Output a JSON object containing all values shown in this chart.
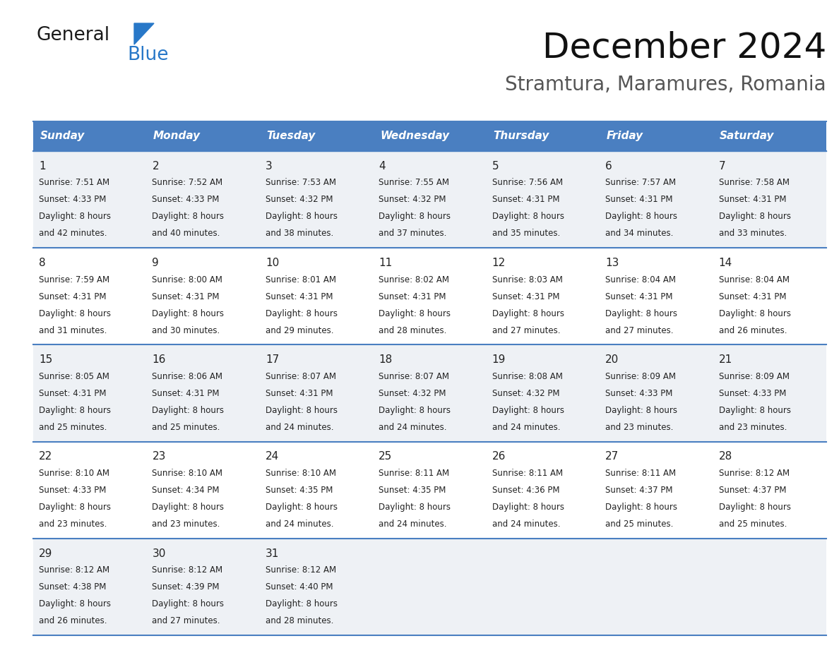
{
  "title": "December 2024",
  "subtitle": "Stramtura, Maramures, Romania",
  "header_bg_color": "#4a7fc1",
  "header_text_color": "#ffffff",
  "cell_bg_even": "#eef1f5",
  "cell_bg_odd": "#ffffff",
  "separator_color": "#4a7fc1",
  "day_headers": [
    "Sunday",
    "Monday",
    "Tuesday",
    "Wednesday",
    "Thursday",
    "Friday",
    "Saturday"
  ],
  "weeks": [
    [
      {
        "day": 1,
        "sunrise": "7:51 AM",
        "sunset": "4:33 PM",
        "daylight": "8 hours and 42 minutes."
      },
      {
        "day": 2,
        "sunrise": "7:52 AM",
        "sunset": "4:33 PM",
        "daylight": "8 hours and 40 minutes."
      },
      {
        "day": 3,
        "sunrise": "7:53 AM",
        "sunset": "4:32 PM",
        "daylight": "8 hours and 38 minutes."
      },
      {
        "day": 4,
        "sunrise": "7:55 AM",
        "sunset": "4:32 PM",
        "daylight": "8 hours and 37 minutes."
      },
      {
        "day": 5,
        "sunrise": "7:56 AM",
        "sunset": "4:31 PM",
        "daylight": "8 hours and 35 minutes."
      },
      {
        "day": 6,
        "sunrise": "7:57 AM",
        "sunset": "4:31 PM",
        "daylight": "8 hours and 34 minutes."
      },
      {
        "day": 7,
        "sunrise": "7:58 AM",
        "sunset": "4:31 PM",
        "daylight": "8 hours and 33 minutes."
      }
    ],
    [
      {
        "day": 8,
        "sunrise": "7:59 AM",
        "sunset": "4:31 PM",
        "daylight": "8 hours and 31 minutes."
      },
      {
        "day": 9,
        "sunrise": "8:00 AM",
        "sunset": "4:31 PM",
        "daylight": "8 hours and 30 minutes."
      },
      {
        "day": 10,
        "sunrise": "8:01 AM",
        "sunset": "4:31 PM",
        "daylight": "8 hours and 29 minutes."
      },
      {
        "day": 11,
        "sunrise": "8:02 AM",
        "sunset": "4:31 PM",
        "daylight": "8 hours and 28 minutes."
      },
      {
        "day": 12,
        "sunrise": "8:03 AM",
        "sunset": "4:31 PM",
        "daylight": "8 hours and 27 minutes."
      },
      {
        "day": 13,
        "sunrise": "8:04 AM",
        "sunset": "4:31 PM",
        "daylight": "8 hours and 27 minutes."
      },
      {
        "day": 14,
        "sunrise": "8:04 AM",
        "sunset": "4:31 PM",
        "daylight": "8 hours and 26 minutes."
      }
    ],
    [
      {
        "day": 15,
        "sunrise": "8:05 AM",
        "sunset": "4:31 PM",
        "daylight": "8 hours and 25 minutes."
      },
      {
        "day": 16,
        "sunrise": "8:06 AM",
        "sunset": "4:31 PM",
        "daylight": "8 hours and 25 minutes."
      },
      {
        "day": 17,
        "sunrise": "8:07 AM",
        "sunset": "4:31 PM",
        "daylight": "8 hours and 24 minutes."
      },
      {
        "day": 18,
        "sunrise": "8:07 AM",
        "sunset": "4:32 PM",
        "daylight": "8 hours and 24 minutes."
      },
      {
        "day": 19,
        "sunrise": "8:08 AM",
        "sunset": "4:32 PM",
        "daylight": "8 hours and 24 minutes."
      },
      {
        "day": 20,
        "sunrise": "8:09 AM",
        "sunset": "4:33 PM",
        "daylight": "8 hours and 23 minutes."
      },
      {
        "day": 21,
        "sunrise": "8:09 AM",
        "sunset": "4:33 PM",
        "daylight": "8 hours and 23 minutes."
      }
    ],
    [
      {
        "day": 22,
        "sunrise": "8:10 AM",
        "sunset": "4:33 PM",
        "daylight": "8 hours and 23 minutes."
      },
      {
        "day": 23,
        "sunrise": "8:10 AM",
        "sunset": "4:34 PM",
        "daylight": "8 hours and 23 minutes."
      },
      {
        "day": 24,
        "sunrise": "8:10 AM",
        "sunset": "4:35 PM",
        "daylight": "8 hours and 24 minutes."
      },
      {
        "day": 25,
        "sunrise": "8:11 AM",
        "sunset": "4:35 PM",
        "daylight": "8 hours and 24 minutes."
      },
      {
        "day": 26,
        "sunrise": "8:11 AM",
        "sunset": "4:36 PM",
        "daylight": "8 hours and 24 minutes."
      },
      {
        "day": 27,
        "sunrise": "8:11 AM",
        "sunset": "4:37 PM",
        "daylight": "8 hours and 25 minutes."
      },
      {
        "day": 28,
        "sunrise": "8:12 AM",
        "sunset": "4:37 PM",
        "daylight": "8 hours and 25 minutes."
      }
    ],
    [
      {
        "day": 29,
        "sunrise": "8:12 AM",
        "sunset": "4:38 PM",
        "daylight": "8 hours and 26 minutes."
      },
      {
        "day": 30,
        "sunrise": "8:12 AM",
        "sunset": "4:39 PM",
        "daylight": "8 hours and 27 minutes."
      },
      {
        "day": 31,
        "sunrise": "8:12 AM",
        "sunset": "4:40 PM",
        "daylight": "8 hours and 28 minutes."
      },
      null,
      null,
      null,
      null
    ]
  ],
  "logo_color1": "#1a1a1a",
  "logo_color2": "#2878c8",
  "logo_triangle_color": "#2878c8",
  "title_fontsize": 36,
  "subtitle_fontsize": 20,
  "header_fontsize": 11,
  "day_num_fontsize": 11,
  "cell_text_fontsize": 8.5
}
